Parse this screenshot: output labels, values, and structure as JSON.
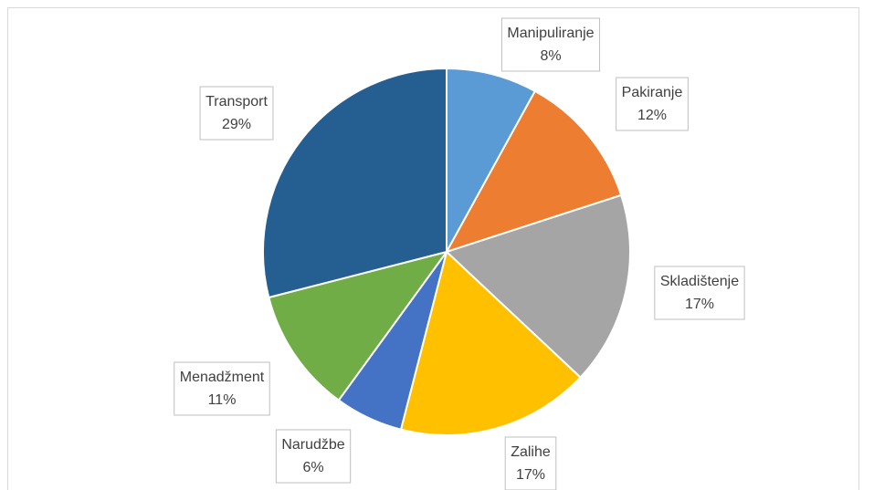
{
  "chart_data": {
    "type": "pie",
    "categories": [
      "Manipuliranje",
      "Pakiranje",
      "Skladištenje",
      "Zalihe",
      "Narudžbe",
      "Menadžment",
      "Transport"
    ],
    "values": [
      8,
      12,
      17,
      17,
      6,
      11,
      29
    ],
    "value_labels": [
      "8%",
      "12%",
      "17%",
      "17%",
      "6%",
      "11%",
      "29%"
    ],
    "colors": [
      "#5b9bd5",
      "#ed7d31",
      "#a5a5a5",
      "#ffc000",
      "#4472c4",
      "#70ad47",
      "#255e91"
    ]
  }
}
